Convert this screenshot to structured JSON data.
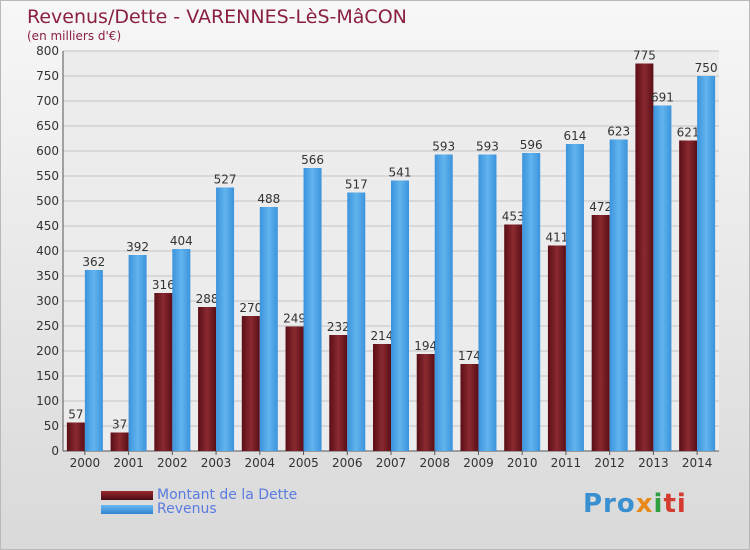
{
  "chart_data": {
    "type": "bar",
    "title": "Revenus/Dette - VARENNES-LèS-MâCON",
    "subtitle": "(en milliers d'€)",
    "categories": [
      "2000",
      "2001",
      "2002",
      "2003",
      "2004",
      "2005",
      "2006",
      "2007",
      "2008",
      "2009",
      "2010",
      "2011",
      "2012",
      "2013",
      "2014"
    ],
    "series": [
      {
        "name": "Montant de la Dette",
        "color": "#7a1a22",
        "values": [
          57,
          37,
          316,
          288,
          270,
          249,
          232,
          214,
          194,
          174,
          453,
          411,
          472,
          775,
          621
        ]
      },
      {
        "name": "Revenus",
        "color": "#4aa3e8",
        "values": [
          362,
          392,
          404,
          527,
          488,
          566,
          517,
          541,
          593,
          593,
          596,
          614,
          623,
          691,
          750
        ]
      }
    ],
    "ylim": [
      0,
      800
    ],
    "yticks": [
      0,
      50,
      100,
      150,
      200,
      250,
      300,
      350,
      400,
      450,
      500,
      550,
      600,
      650,
      700,
      750,
      800
    ],
    "grid": true,
    "legend_position": "bottom-left"
  },
  "logo": {
    "text_parts": [
      "Pro",
      "x",
      "i",
      "ti"
    ]
  }
}
